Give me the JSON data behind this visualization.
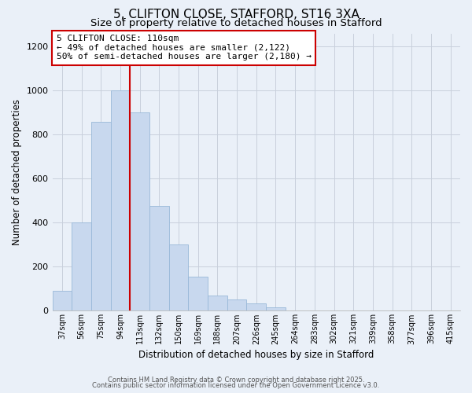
{
  "title": "5, CLIFTON CLOSE, STAFFORD, ST16 3XA",
  "subtitle": "Size of property relative to detached houses in Stafford",
  "xlabel": "Distribution of detached houses by size in Stafford",
  "ylabel": "Number of detached properties",
  "bin_labels": [
    "37sqm",
    "56sqm",
    "75sqm",
    "94sqm",
    "113sqm",
    "132sqm",
    "150sqm",
    "169sqm",
    "188sqm",
    "207sqm",
    "226sqm",
    "245sqm",
    "264sqm",
    "283sqm",
    "302sqm",
    "321sqm",
    "339sqm",
    "358sqm",
    "377sqm",
    "396sqm",
    "415sqm"
  ],
  "bar_heights": [
    90,
    400,
    860,
    1000,
    900,
    475,
    300,
    155,
    70,
    50,
    32,
    15,
    2,
    0,
    0,
    0,
    0,
    0,
    0,
    0,
    0
  ],
  "bar_color": "#c8d8ee",
  "bar_edge_color": "#99b8d8",
  "vline_index": 3.5,
  "vline_color": "#cc0000",
  "annotation_line1": "5 CLIFTON CLOSE: 110sqm",
  "annotation_line2": "← 49% of detached houses are smaller (2,122)",
  "annotation_line3": "50% of semi-detached houses are larger (2,180) →",
  "annotation_box_color": "#ffffff",
  "annotation_box_edge": "#cc0000",
  "ylim": [
    0,
    1260
  ],
  "yticks": [
    0,
    200,
    400,
    600,
    800,
    1000,
    1200
  ],
  "footer_line1": "Contains HM Land Registry data © Crown copyright and database right 2025.",
  "footer_line2": "Contains public sector information licensed under the Open Government Licence v3.0.",
  "bg_color": "#eaf0f8",
  "grid_color": "#c8d0dc",
  "title_fontsize": 11,
  "subtitle_fontsize": 9.5
}
